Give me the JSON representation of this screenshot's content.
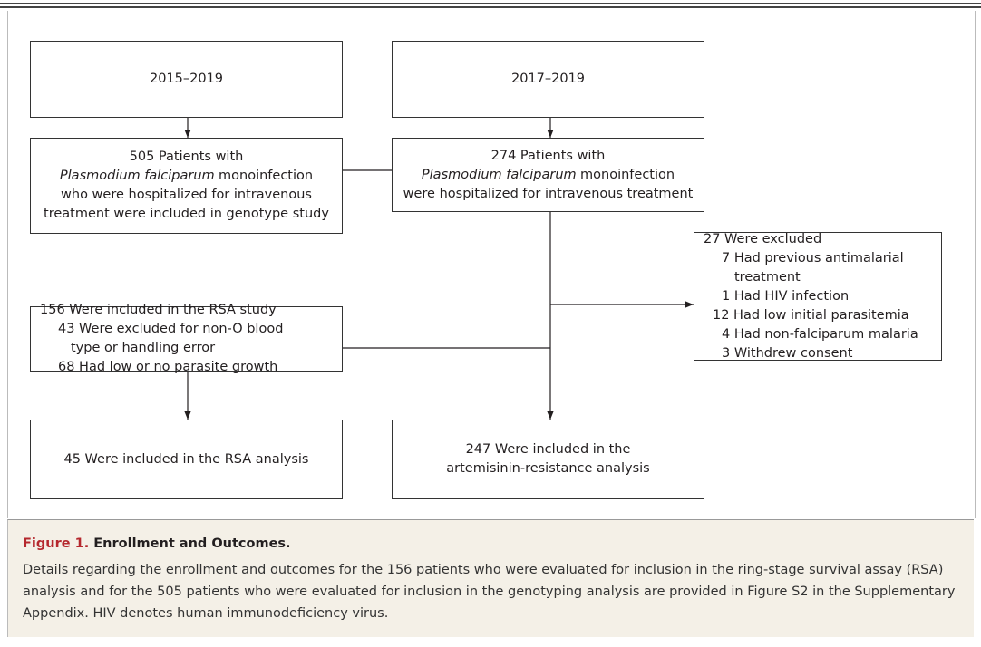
{
  "nodes": [
    {
      "lines": [
        "2015–2019"
      ]
    },
    {
      "lines": [
        "2017–2019"
      ]
    },
    {
      "lines": [
        "505 Patients with",
        "monoinfection",
        "who were hospitalized for intravenous",
        "treatment were included in genotype study"
      ],
      "italic": "Plasmodium falciparum"
    },
    {
      "lines": [
        "274 Patients with",
        "monoinfection",
        "were hospitalized for intravenous treatment"
      ],
      "italic": "Plasmodium falciparum"
    },
    {
      "title": "27 Were excluded",
      "items": [
        "7 Had previous antimalarial",
        "treatment",
        "1 Had HIV infection",
        "12 Had low initial parasitemia",
        "4 Had non-falciparum malaria",
        "3 Withdrew consent"
      ]
    },
    {
      "title": "156 Were included in the RSA study",
      "items": [
        "43 Were excluded for non-O blood",
        "type or handling error",
        "68 Had low or no parasite growth"
      ]
    },
    {
      "lines": [
        "45 Were included in the RSA analysis"
      ]
    },
    {
      "lines": [
        "247 Were included in the",
        "artemisinin-resistance analysis"
      ]
    }
  ],
  "caption": {
    "label": "Figure 1.",
    "title": "Enrollment and Outcomes.",
    "text": "Details regarding the enrollment and outcomes for the 156 patients who were evaluated for inclusion in the ring-stage survival assay (RSA) analysis and for the 505 patients who were evaluated for inclusion in the genotyping analysis are provided in Figure S2 in the Supplementary Appendix. HIV denotes human immunodeficiency virus."
  }
}
